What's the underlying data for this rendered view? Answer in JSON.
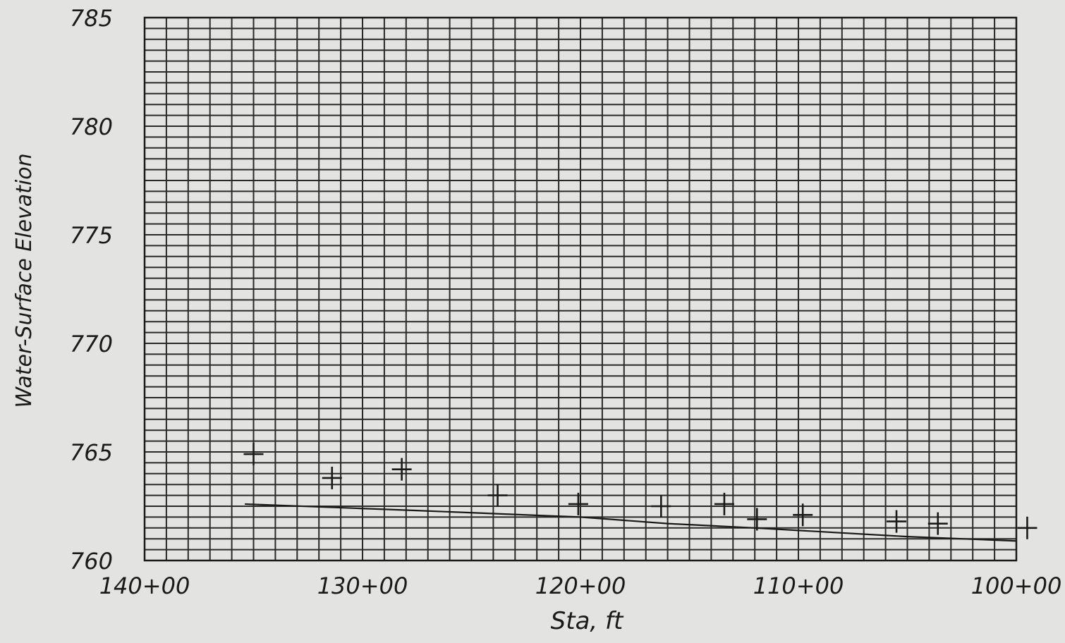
{
  "chart_data": {
    "type": "scatter",
    "title": "",
    "xlabel": "Sta, ft",
    "ylabel": "Water-Surface Elevation",
    "xlim": [
      140,
      100
    ],
    "ylim": [
      760,
      785
    ],
    "x_ticks": [
      140,
      130,
      120,
      110,
      100
    ],
    "x_tick_labels": [
      "140+00",
      "130+00",
      "120+00",
      "110+00",
      "100+00"
    ],
    "y_ticks": [
      760,
      765,
      770,
      775,
      780,
      785
    ],
    "y_tick_labels": [
      "760",
      "765",
      "770",
      "775",
      "780",
      "785"
    ],
    "grid": true,
    "series": [
      {
        "type": "line",
        "points": [
          {
            "x": 135.4,
            "y": 762.6
          },
          {
            "x": 127.5,
            "y": 762.3
          },
          {
            "x": 120.0,
            "y": 762.0
          },
          {
            "x": 116.0,
            "y": 761.7
          },
          {
            "x": 112.0,
            "y": 761.5
          },
          {
            "x": 105.0,
            "y": 761.1
          },
          {
            "x": 100.0,
            "y": 760.9
          }
        ]
      },
      {
        "type": "scatter",
        "marker": "plus",
        "points": [
          {
            "x": 135.0,
            "y": 764.9
          },
          {
            "x": 131.4,
            "y": 763.8
          },
          {
            "x": 128.2,
            "y": 764.2
          },
          {
            "x": 123.8,
            "y": 763.0
          },
          {
            "x": 120.1,
            "y": 762.6
          },
          {
            "x": 116.3,
            "y": 762.5
          },
          {
            "x": 113.4,
            "y": 762.6
          },
          {
            "x": 111.9,
            "y": 761.9
          },
          {
            "x": 109.8,
            "y": 762.1
          },
          {
            "x": 105.5,
            "y": 761.8
          },
          {
            "x": 103.6,
            "y": 761.7
          },
          {
            "x": 99.5,
            "y": 761.5
          }
        ]
      }
    ]
  }
}
